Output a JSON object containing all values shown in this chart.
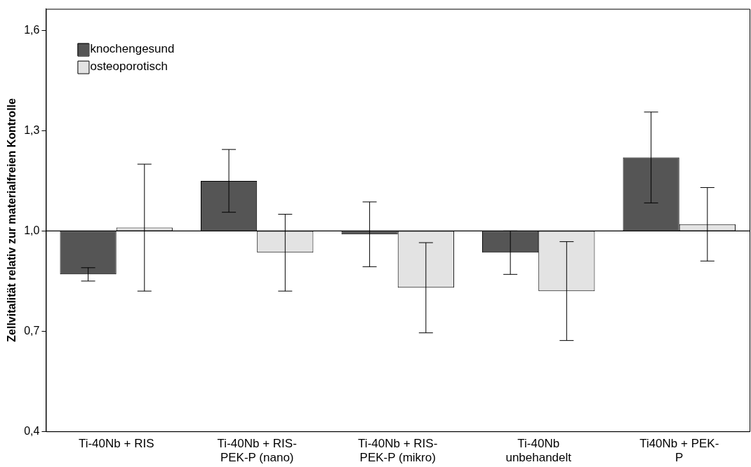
{
  "chart_data": {
    "type": "bar",
    "ylabel": "Zellvitalität relativ zur materialfreien Kontrolle",
    "categories": [
      "Ti-40Nb + RIS",
      "Ti-40Nb + RIS-\nPEK-P (nano)",
      "Ti-40Nb + RIS-\nPEK-P (mikro)",
      "Ti-40Nb\nunbehandelt",
      "Ti40Nb + PEK-\nP"
    ],
    "series": [
      {
        "name": "knochengesund",
        "color": "#555555",
        "base": [
          1,
          1,
          1,
          1,
          1
        ],
        "values": [
          -0.13,
          0.15,
          -0.01,
          -0.065,
          0.22
        ],
        "errors": [
          0.02,
          0.094,
          0.097,
          0.065,
          0.136
        ]
      },
      {
        "name": "osteoporotisch",
        "color": "#e3e3e3",
        "base": [
          1,
          1,
          1,
          1,
          1
        ],
        "values": [
          0.01,
          -0.065,
          -0.17,
          -0.18,
          0.02
        ],
        "errors": [
          0.19,
          0.115,
          0.135,
          0.148,
          0.11
        ]
      }
    ],
    "ylim": [
      0.4,
      1.665
    ],
    "yticks": [
      {
        "value": 0.4,
        "label": "0,4"
      },
      {
        "value": 0.7,
        "label": "0,7"
      },
      {
        "value": 1.0,
        "label": "1,0"
      },
      {
        "value": 1.3,
        "label": "1,3"
      },
      {
        "value": 1.6,
        "label": "1,6"
      }
    ],
    "ref_lines": [
      {
        "axis": "y",
        "value": 1,
        "color": "#000000"
      }
    ],
    "grid": false,
    "legend": "top left"
  }
}
